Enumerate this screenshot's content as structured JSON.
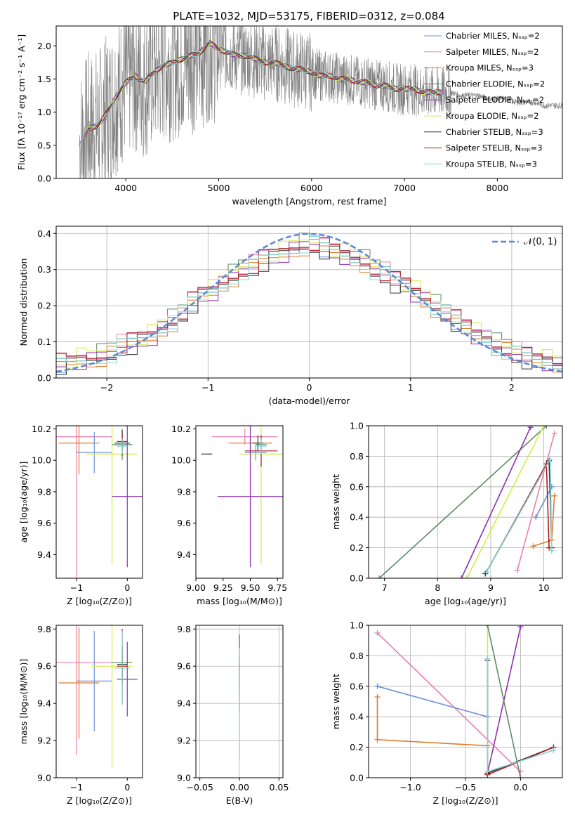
{
  "figure": {
    "title": "PLATE=1032, MJD=53175, FIBERID=0312, z=0.084"
  },
  "chart_data": [
    {
      "id": "spectrum",
      "type": "line",
      "xlabel": "wavelength [Angstrom, rest frame]",
      "ylabel": "Flux [fλ 10⁻¹⁷ erg cm⁻² s⁻¹ A⁻¹]",
      "xlim": [
        3250,
        8700
      ],
      "ylim": [
        0,
        2.3
      ],
      "xticks": [
        4000,
        5000,
        6000,
        7000,
        8000
      ],
      "yticks": [
        0.0,
        0.5,
        1.0,
        1.5,
        2.0
      ],
      "grid": false,
      "legend_position": "right",
      "series": [
        {
          "name": "Chabrier MILES, N_SSP=2",
          "color": "#6a8fd8"
        },
        {
          "name": "Salpeter MILES, N_SSP=2",
          "color": "#e87fb0"
        },
        {
          "name": "Kroupa MILES, N_SSP=3",
          "color": "#e07b28"
        },
        {
          "name": "Chabrier ELODIE, N_SSP=2",
          "color": "#5e8a66"
        },
        {
          "name": "Salpeter ELODIE, N_SSP=2",
          "color": "#8e2fb0"
        },
        {
          "name": "Kroupa ELODIE, N_SSP=2",
          "color": "#d4ec4a"
        },
        {
          "name": "Chabrier STELIB, N_SSP=3",
          "color": "#333333"
        },
        {
          "name": "Salpeter STELIB, N_SSP=3",
          "color": "#b01c1c"
        },
        {
          "name": "Kroupa STELIB, N_SSP=3",
          "color": "#7fd6d6"
        }
      ],
      "data_color": "#808080",
      "continuum": {
        "x": [
          3500,
          3600,
          3700,
          3800,
          3900,
          4000,
          4100,
          4200,
          4300,
          4400,
          4500,
          4600,
          4700,
          4800,
          4900,
          5000,
          5100,
          5200,
          5300,
          5400,
          5500,
          5600,
          5700,
          5800,
          5900,
          6000,
          6100,
          6200,
          6300,
          6400,
          6500,
          6600,
          6700,
          6800,
          6900,
          7000,
          7100,
          7200,
          7300,
          7400,
          7500,
          7600,
          7700,
          7800,
          7900,
          8000,
          8100,
          8200,
          8300,
          8400,
          8500,
          8600,
          8700
        ],
        "y": [
          0.5,
          0.75,
          0.8,
          1.0,
          1.25,
          1.45,
          1.55,
          1.45,
          1.6,
          1.7,
          1.75,
          1.8,
          1.85,
          1.9,
          2.05,
          1.95,
          1.9,
          1.85,
          1.85,
          1.8,
          1.75,
          1.75,
          1.7,
          1.65,
          1.65,
          1.6,
          1.55,
          1.55,
          1.5,
          1.5,
          1.45,
          1.45,
          1.4,
          1.4,
          1.35,
          1.35,
          1.35,
          1.3,
          1.3,
          1.3,
          1.3,
          1.25,
          1.25,
          1.25,
          1.2,
          1.2,
          1.2,
          1.15,
          1.15,
          1.15,
          1.1,
          1.1,
          1.1
        ]
      }
    },
    {
      "id": "residuals",
      "type": "line",
      "xlabel": "(data-model)/error",
      "ylabel": "Normed distribution",
      "xlim": [
        -2.5,
        2.5
      ],
      "ylim": [
        0,
        0.42
      ],
      "xticks": [
        -2,
        -1,
        0,
        1,
        2
      ],
      "yticks": [
        0.0,
        0.1,
        0.2,
        0.3,
        0.4
      ],
      "grid": true,
      "legend_position": "top-right",
      "legend": [
        "𝒩(0, 1)"
      ],
      "gaussian_color": "#5b86d8",
      "bins": [
        -2.5,
        -2.4,
        -2.3,
        -2.2,
        -2.1,
        -2.0,
        -1.9,
        -1.8,
        -1.7,
        -1.6,
        -1.5,
        -1.4,
        -1.3,
        -1.2,
        -1.1,
        -1.0,
        -0.9,
        -0.8,
        -0.7,
        -0.6,
        -0.5,
        -0.4,
        -0.3,
        -0.2,
        -0.1,
        0.0,
        0.1,
        0.2,
        0.3,
        0.4,
        0.5,
        0.6,
        0.7,
        0.8,
        0.9,
        1.0,
        1.1,
        1.2,
        1.3,
        1.4,
        1.5,
        1.6,
        1.7,
        1.8,
        1.9,
        2.0,
        2.1,
        2.2,
        2.3,
        2.4
      ],
      "base_values": [
        0.04,
        0.04,
        0.05,
        0.05,
        0.06,
        0.07,
        0.09,
        0.1,
        0.11,
        0.12,
        0.14,
        0.16,
        0.18,
        0.21,
        0.23,
        0.24,
        0.26,
        0.28,
        0.3,
        0.31,
        0.33,
        0.34,
        0.35,
        0.36,
        0.37,
        0.37,
        0.36,
        0.35,
        0.34,
        0.33,
        0.32,
        0.3,
        0.29,
        0.27,
        0.26,
        0.24,
        0.22,
        0.2,
        0.18,
        0.16,
        0.14,
        0.12,
        0.11,
        0.09,
        0.08,
        0.07,
        0.06,
        0.05,
        0.05,
        0.04
      ]
    },
    {
      "id": "age-vs-Z",
      "type": "scatter",
      "xlabel": "Z [log₁₀(Z/Z⊙)]",
      "ylabel": "age  [log₁₀(age/yr)]",
      "xlim": [
        -1.4,
        0.3
      ],
      "ylim": [
        9.25,
        10.22
      ],
      "xticks": [
        -1,
        0
      ],
      "yticks": [
        9.4,
        9.6,
        9.8,
        10.0,
        10.2
      ],
      "ytick_labels": [
        "9.4",
        "9.6",
        "9.8",
        "10.0",
        "10.2"
      ],
      "points": [
        {
          "color": "#e87fb0",
          "x": -1.0,
          "y": 10.15,
          "ex": 0.7,
          "ey": 0.9
        },
        {
          "color": "#e07b28",
          "x": -0.95,
          "y": 10.11,
          "ex": 0.4,
          "ey": 0.2
        },
        {
          "color": "#6a8fd8",
          "x": -0.65,
          "y": 10.05,
          "ex": 0.35,
          "ey": 0.13
        },
        {
          "color": "#d4ec4a",
          "x": -0.3,
          "y": 10.04,
          "ex": 0.5,
          "ey": 0.7
        },
        {
          "color": "#5e8a66",
          "x": -0.1,
          "y": 10.1,
          "ex": 0.2,
          "ey": 0.1
        },
        {
          "color": "#333333",
          "x": -0.1,
          "y": 10.11,
          "ex": 0.15,
          "ey": 0.08
        },
        {
          "color": "#8e2fb0",
          "x": 0.0,
          "y": 9.77,
          "ex": 0.3,
          "ey": 0.45
        },
        {
          "color": "#b01c1c",
          "x": -0.1,
          "y": 10.12,
          "ex": 0.1,
          "ey": 0.05
        },
        {
          "color": "#7fd6d6",
          "x": -0.1,
          "y": 10.09,
          "ex": 0.1,
          "ey": 0.05
        }
      ]
    },
    {
      "id": "age-vs-mass",
      "type": "scatter",
      "xlabel": "mass [log₁₀(M/M⊙)]",
      "ylabel": "",
      "xlim": [
        9.0,
        9.8
      ],
      "ylim": [
        9.25,
        10.22
      ],
      "xticks": [
        9.0,
        9.25,
        9.5,
        9.75
      ],
      "xtick_labels": [
        "9.00",
        "9.25",
        "9.50",
        "9.75"
      ],
      "yticks": [
        9.4,
        9.6,
        9.8,
        10.0,
        10.2
      ],
      "ytick_labels": [
        "9.4",
        "9.6",
        "9.8",
        "10.0",
        "10.2"
      ],
      "points": [
        {
          "color": "#e87fb0",
          "x": 9.45,
          "y": 10.15,
          "ex": 0.3,
          "ey": 0.05
        },
        {
          "color": "#e07b28",
          "x": 9.5,
          "y": 10.11,
          "ex": 0.2,
          "ey": 0.05
        },
        {
          "color": "#6a8fd8",
          "x": 9.55,
          "y": 10.05,
          "ex": 0.1,
          "ey": 0.05
        },
        {
          "color": "#d4ec4a",
          "x": 9.6,
          "y": 10.04,
          "ex": 0.2,
          "ey": 0.7
        },
        {
          "color": "#5e8a66",
          "x": 9.6,
          "y": 10.1,
          "ex": 0.05,
          "ey": 0.05
        },
        {
          "color": "#333333",
          "x": 9.57,
          "y": 10.11,
          "ex": 0.05,
          "ey": 0.05
        },
        {
          "color": "#8e2fb0",
          "x": 9.5,
          "y": 9.77,
          "ex": 0.3,
          "ey": 0.45
        },
        {
          "color": "#b01c1c",
          "x": 9.6,
          "y": 10.06,
          "ex": 0.15,
          "ey": 0.1
        },
        {
          "color": "#7fd6d6",
          "x": 9.6,
          "y": 10.09,
          "ex": 0.05,
          "ey": 0.05
        },
        {
          "color": "#333333",
          "x": 9.1,
          "y": 10.04,
          "ex": 0.05,
          "ey": 0.0
        }
      ]
    },
    {
      "id": "weight-vs-age",
      "type": "line",
      "xlabel": "age  [log₁₀(age/yr)]",
      "ylabel": "mass weight",
      "xlim": [
        6.7,
        10.35
      ],
      "ylim": [
        0,
        1
      ],
      "xticks": [
        7,
        8,
        9,
        10
      ],
      "yticks": [
        0.0,
        0.2,
        0.4,
        0.6,
        0.8,
        1.0
      ],
      "yticks_labels": [
        "0.0",
        "0.2",
        "0.4",
        "0.6",
        "0.8",
        "1.0"
      ],
      "grid": true,
      "series": [
        {
          "color": "#5e8a66",
          "x": [
            6.9,
            10.05
          ],
          "y": [
            0.0,
            1.0
          ]
        },
        {
          "color": "#8e2fb0",
          "x": [
            8.45,
            9.75
          ],
          "y": [
            0.0,
            0.99
          ]
        },
        {
          "color": "#d4ec4a",
          "x": [
            8.55,
            10.0
          ],
          "y": [
            0.0,
            1.0
          ]
        },
        {
          "color": "#e87fb0",
          "x": [
            9.5,
            10.2
          ],
          "y": [
            0.05,
            0.95
          ]
        },
        {
          "color": "#6a8fd8",
          "x": [
            9.85,
            10.15
          ],
          "y": [
            0.4,
            0.6
          ]
        },
        {
          "color": "#e07b28",
          "x": [
            9.8,
            10.15,
            10.2
          ],
          "y": [
            0.21,
            0.25,
            0.54
          ]
        },
        {
          "color": "#333333",
          "x": [
            8.9,
            10.1,
            10.15
          ],
          "y": [
            0.03,
            0.77,
            0.2
          ]
        },
        {
          "color": "#b01c1c",
          "x": [
            8.92,
            10.05,
            10.1
          ],
          "y": [
            0.04,
            0.75,
            0.2
          ]
        },
        {
          "color": "#7fd6d6",
          "x": [
            8.92,
            10.12,
            10.15
          ],
          "y": [
            0.04,
            0.78,
            0.18
          ]
        }
      ]
    },
    {
      "id": "mass-vs-Z",
      "type": "scatter",
      "xlabel": "Z [log₁₀(Z/Z⊙)]",
      "ylabel": "mass [log₁₀(M/M⊙)]",
      "xlim": [
        -1.4,
        0.3
      ],
      "ylim": [
        9.0,
        9.82
      ],
      "xticks": [
        -1,
        0
      ],
      "yticks": [
        9.0,
        9.2,
        9.4,
        9.6,
        9.8
      ],
      "ytick_labels": [
        "9.0",
        "9.2",
        "9.4",
        "9.6",
        "9.8"
      ],
      "points": [
        {
          "color": "#e87fb0",
          "x": -1.0,
          "y": 9.62,
          "ex": 0.7,
          "ey": 0.5
        },
        {
          "color": "#e07b28",
          "x": -0.95,
          "y": 9.51,
          "ex": 0.4,
          "ey": 0.3
        },
        {
          "color": "#6a8fd8",
          "x": -0.65,
          "y": 9.52,
          "ex": 0.35,
          "ey": 0.27
        },
        {
          "color": "#d4ec4a",
          "x": -0.3,
          "y": 9.6,
          "ex": 0.4,
          "ey": 0.55
        },
        {
          "color": "#5e8a66",
          "x": -0.1,
          "y": 9.62,
          "ex": 0.2,
          "ey": 0.08
        },
        {
          "color": "#333333",
          "x": -0.1,
          "y": 9.61,
          "ex": 0.1,
          "ey": 0.1
        },
        {
          "color": "#8e2fb0",
          "x": 0.0,
          "y": 9.53,
          "ex": 0.2,
          "ey": 0.2
        },
        {
          "color": "#b01c1c",
          "x": -0.1,
          "y": 9.6,
          "ex": 0.1,
          "ey": 0.2
        },
        {
          "color": "#7fd6d6",
          "x": -0.1,
          "y": 9.59,
          "ex": 0.15,
          "ey": 0.2
        }
      ]
    },
    {
      "id": "mass-vs-ebv",
      "type": "scatter",
      "xlabel": "E(B-V)",
      "ylabel": "",
      "xlim": [
        -0.055,
        0.055
      ],
      "ylim": [
        9.0,
        9.82
      ],
      "xticks": [
        -0.05,
        0.0,
        0.05
      ],
      "xtick_labels": [
        "−0.05",
        "0.00",
        "0.05"
      ],
      "yticks": [
        9.0,
        9.2,
        9.4,
        9.6,
        9.8
      ],
      "ytick_labels": [
        "9.0",
        "9.2",
        "9.4",
        "9.6",
        "9.8"
      ],
      "grid": true,
      "points": [
        {
          "color": "#8e2fb0",
          "x": 0.0,
          "y": 9.62,
          "ex": 0.0,
          "ey": 0.15
        },
        {
          "color": "#b01c1c",
          "x": 0.0,
          "y": 9.5,
          "ex": 0.0,
          "ey": 0.15
        },
        {
          "color": "#d4ec4a",
          "x": 0.0,
          "y": 9.35,
          "ex": 0.0,
          "ey": 0.25
        },
        {
          "color": "#7fd6d6",
          "x": 0.0,
          "y": 9.4,
          "ex": 0.0,
          "ey": 0.3
        }
      ]
    },
    {
      "id": "weight-vs-Z",
      "type": "line",
      "xlabel": "Z [log₁₀(Z/Z⊙)]",
      "ylabel": "mass weight",
      "xlim": [
        -1.38,
        0.38
      ],
      "ylim": [
        0,
        1
      ],
      "xticks": [
        -1.0,
        -0.5,
        0.0
      ],
      "xtick_labels": [
        "−1.0",
        "−0.5",
        "0.0"
      ],
      "yticks": [
        0.0,
        0.2,
        0.4,
        0.6,
        0.8,
        1.0
      ],
      "yticks_labels": [
        "0.0",
        "0.2",
        "0.4",
        "0.6",
        "0.8",
        "1.0"
      ],
      "grid": true,
      "series": [
        {
          "color": "#e87fb0",
          "x": [
            -1.3,
            0.0
          ],
          "y": [
            0.95,
            0.04
          ]
        },
        {
          "color": "#6a8fd8",
          "x": [
            -1.3,
            -0.3
          ],
          "y": [
            0.6,
            0.4
          ]
        },
        {
          "color": "#e07b28",
          "x": [
            -1.3,
            -1.3,
            -0.3
          ],
          "y": [
            0.53,
            0.25,
            0.21
          ]
        },
        {
          "color": "#8e2fb0",
          "x": [
            -0.3,
            0.0
          ],
          "y": [
            0.03,
            0.99
          ]
        },
        {
          "color": "#d4ec4a",
          "x": [
            -0.3,
            -0.3
          ],
          "y": [
            1.0,
            0.0
          ]
        },
        {
          "color": "#5e8a66",
          "x": [
            -0.3,
            0.0
          ],
          "y": [
            1.0,
            0.0
          ]
        },
        {
          "color": "#333333",
          "x": [
            -0.3,
            -0.3,
            0.3
          ],
          "y": [
            0.77,
            0.03,
            0.2
          ]
        },
        {
          "color": "#b01c1c",
          "x": [
            -0.3,
            0.3
          ],
          "y": [
            0.02,
            0.2
          ]
        },
        {
          "color": "#7fd6d6",
          "x": [
            -0.3,
            -0.3,
            0.3
          ],
          "y": [
            0.78,
            0.04,
            0.18
          ]
        }
      ]
    }
  ]
}
